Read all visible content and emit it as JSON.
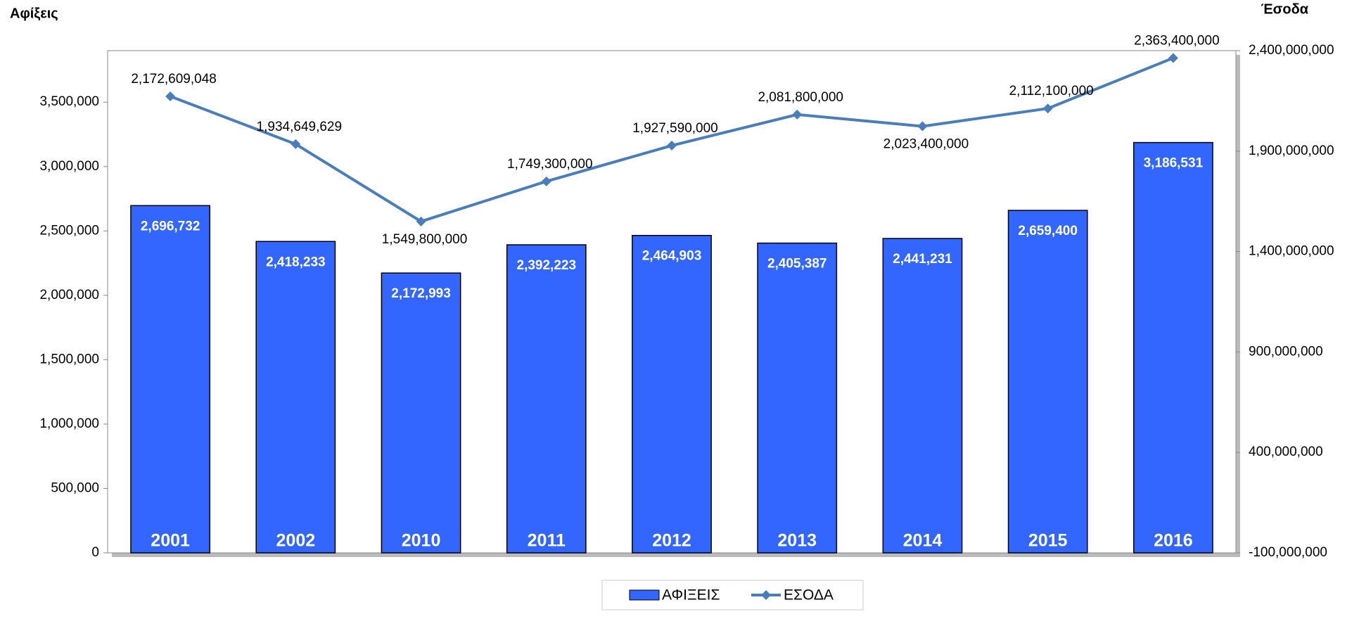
{
  "chart_data": {
    "type": "bar",
    "y_label": "Αφίξεις",
    "y2_label": "Έσοδα",
    "categories": [
      "2001",
      "2002",
      "2010",
      "2011",
      "2012",
      "2013",
      "2014",
      "2015",
      "2016"
    ],
    "series": [
      {
        "name": "ΑΦΙΞΕΙΣ",
        "type": "bar",
        "color": "#3366ff",
        "values": [
          2696732,
          2418233,
          2172993,
          2392223,
          2464903,
          2405387,
          2441231,
          2659400,
          3186531
        ],
        "value_labels": [
          "2,696,732",
          "2,418,233",
          "2,172,993",
          "2,392,223",
          "2,464,903",
          "2,405,387",
          "2,441,231",
          "2,659,400",
          "3,186,531"
        ]
      },
      {
        "name": "ΕΣΟΔΑ",
        "type": "line",
        "axis": "y2",
        "color": "#4a7ebb",
        "values": [
          2172609048,
          1934649629,
          1549800000,
          1749300000,
          1927590000,
          2081800000,
          2023400000,
          2112100000,
          2363400000
        ],
        "value_labels": [
          "2,172,609,048",
          "1,934,649,629",
          "1,549,800,000",
          "1,749,300,000",
          "1,927,590,000",
          "2,081,800,000",
          "2,023,400,000",
          "2,112,100,000",
          "2,363,400,000"
        ]
      }
    ],
    "ylim": [
      0,
      3900000
    ],
    "yticks": [
      0,
      {
        "value": 500000,
        "label": "500,000"
      },
      {
        "value": 1000000,
        "label": "1,000,000"
      },
      {
        "value": 1500000,
        "label": "1,500,000"
      },
      {
        "value": 2000000,
        "label": "2,000,000"
      },
      {
        "value": 2500000,
        "label": "2,500,000"
      },
      {
        "value": 3000000,
        "label": "3,000,000"
      },
      {
        "value": 3500000,
        "label": "3,500,000"
      }
    ],
    "y2lim": [
      -100000000,
      2400000000
    ],
    "y2ticks": [
      {
        "value": -100000000,
        "label": "-100,000,000"
      },
      {
        "value": 400000000,
        "label": "400,000,000"
      },
      {
        "value": 900000000,
        "label": "900,000,000"
      },
      {
        "value": 1400000000,
        "label": "1,400,000,000"
      },
      {
        "value": 1900000000,
        "label": "1,900,000,000"
      },
      {
        "value": 2400000000,
        "label": "2,400,000,000"
      }
    ],
    "grid": false,
    "legend": "bottom"
  }
}
